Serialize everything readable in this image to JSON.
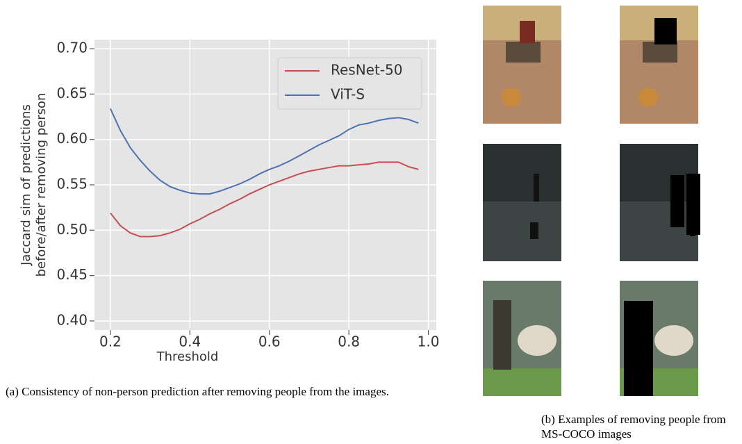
{
  "chart_data": {
    "type": "line",
    "ylabel": [
      "Jaccard sim of predictions",
      "before/after removing person"
    ],
    "xlabel": "Threshold",
    "x": [
      0.2,
      0.225,
      0.25,
      0.275,
      0.3,
      0.325,
      0.35,
      0.375,
      0.4,
      0.425,
      0.45,
      0.475,
      0.5,
      0.525,
      0.55,
      0.575,
      0.6,
      0.625,
      0.65,
      0.675,
      0.7,
      0.725,
      0.75,
      0.775,
      0.8,
      0.825,
      0.85,
      0.875,
      0.9,
      0.925,
      0.95,
      0.975
    ],
    "series": [
      {
        "name": "ResNet-50",
        "color": "#c44e52",
        "values": [
          0.519,
          0.505,
          0.497,
          0.493,
          0.493,
          0.494,
          0.497,
          0.501,
          0.507,
          0.512,
          0.518,
          0.523,
          0.529,
          0.534,
          0.54,
          0.545,
          0.55,
          0.554,
          0.558,
          0.562,
          0.565,
          0.567,
          0.569,
          0.571,
          0.571,
          0.572,
          0.573,
          0.575,
          0.575,
          0.575,
          0.57,
          0.567
        ]
      },
      {
        "name": "ViT-S",
        "color": "#4c72b0",
        "values": [
          0.634,
          0.61,
          0.591,
          0.577,
          0.565,
          0.555,
          0.548,
          0.544,
          0.541,
          0.54,
          0.54,
          0.543,
          0.547,
          0.551,
          0.556,
          0.562,
          0.567,
          0.571,
          0.576,
          0.582,
          0.588,
          0.594,
          0.599,
          0.604,
          0.611,
          0.616,
          0.618,
          0.621,
          0.623,
          0.624,
          0.622,
          0.618
        ]
      }
    ],
    "xlim": [
      0.16,
      1.02
    ],
    "ylim": [
      0.39,
      0.71
    ],
    "xticks": [
      0.2,
      0.4,
      0.6,
      0.8,
      {
        "value": 1.0,
        "label": "1.0"
      }
    ],
    "yticks": [
      {
        "value": 0.4,
        "label": "0.40"
      },
      {
        "value": 0.45,
        "label": "0.45"
      },
      {
        "value": 0.5,
        "label": "0.50"
      },
      {
        "value": 0.55,
        "label": "0.55"
      },
      {
        "value": 0.6,
        "label": "0.60"
      },
      {
        "value": 0.65,
        "label": "0.65"
      },
      {
        "value": 0.7,
        "label": "0.70"
      }
    ],
    "grid": true,
    "legend": "upper right"
  },
  "captions": {
    "a": "(a) Consistency of non-person prediction after removing people from the images.",
    "b": "(b) Examples of removing people from MS-COCO images"
  }
}
